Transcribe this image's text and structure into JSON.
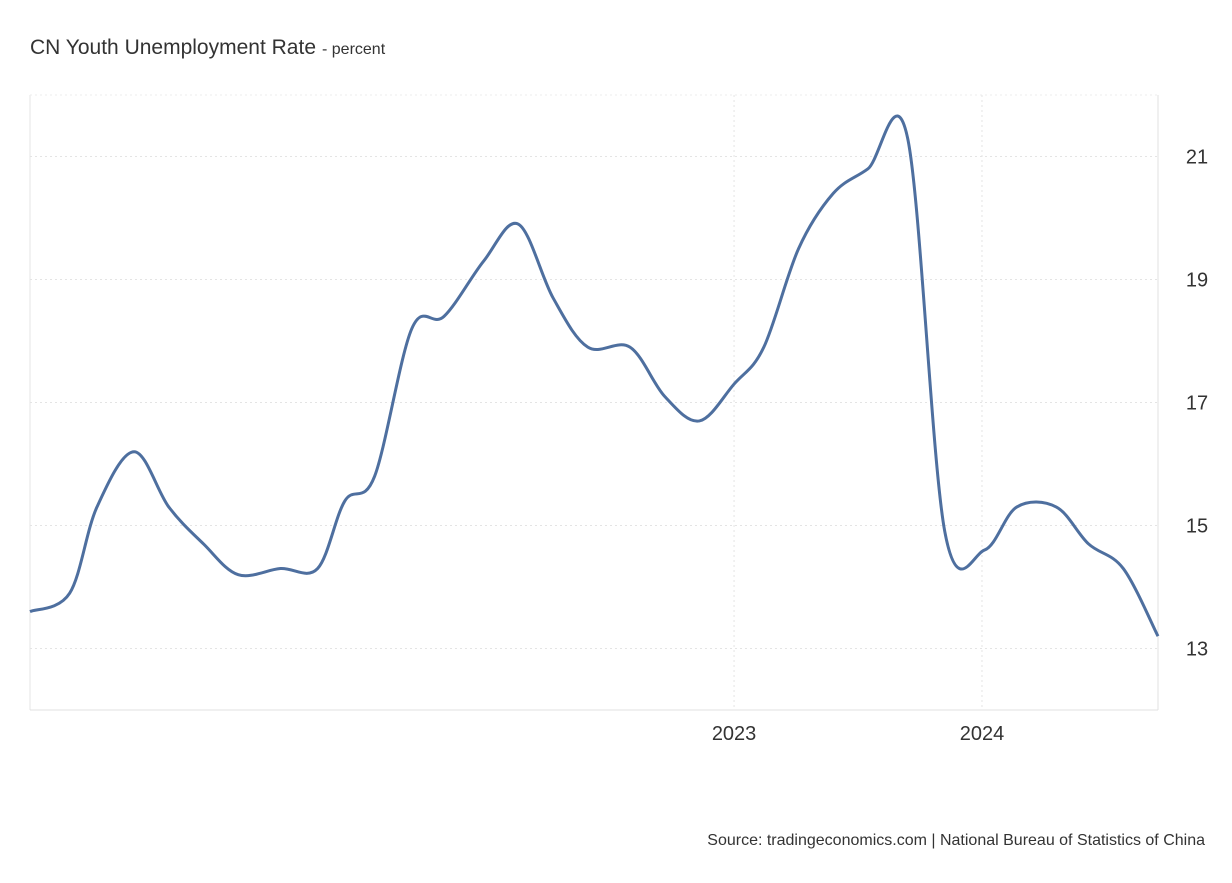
{
  "chart_data": {
    "type": "line",
    "title": "CN Youth Unemployment Rate",
    "subtitle": "- percent",
    "source": "Source: tradingeconomics.com | National Bureau of Statistics of China",
    "x": [
      2020.16,
      2020.32,
      2020.43,
      2020.58,
      2020.72,
      2020.86,
      2021.0,
      2021.17,
      2021.32,
      2021.43,
      2021.55,
      2021.7,
      2021.83,
      2021.99,
      2022.13,
      2022.27,
      2022.41,
      2022.58,
      2022.72,
      2022.86,
      2023.0,
      2023.12,
      2023.26,
      2023.4,
      2023.54,
      2023.7,
      2023.85,
      2024.01,
      2024.14,
      2024.3,
      2024.43,
      2024.57,
      2024.71
    ],
    "series": [
      {
        "name": "CN Youth Unemployment Rate",
        "color": "#4e6f9f",
        "values": [
          13.6,
          13.9,
          15.3,
          16.2,
          15.3,
          14.7,
          14.2,
          14.3,
          14.3,
          15.4,
          15.8,
          18.2,
          18.4,
          19.3,
          19.9,
          18.7,
          17.9,
          17.9,
          17.1,
          16.7,
          17.3,
          17.9,
          19.5,
          20.4,
          20.8,
          21.3,
          14.9,
          14.6,
          15.3,
          15.3,
          14.7,
          14.3,
          13.2
        ]
      }
    ],
    "xlim": [
      2020.16,
      2024.71
    ],
    "xticks": [
      2023,
      2024
    ],
    "ylim": [
      12,
      22
    ],
    "yticks": [
      13,
      15,
      17,
      19,
      21
    ],
    "grid": true
  }
}
